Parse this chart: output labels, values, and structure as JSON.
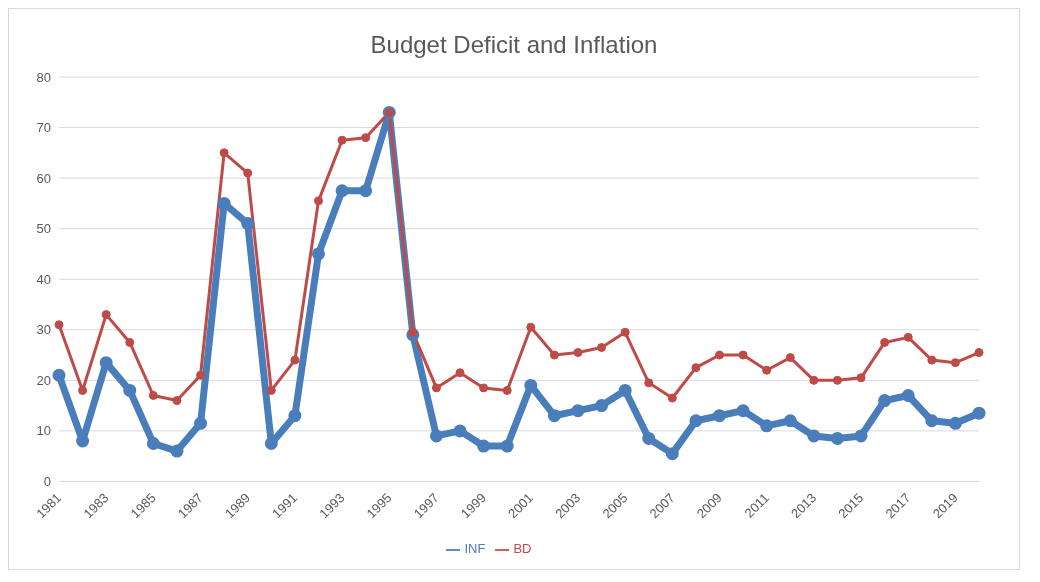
{
  "chart_data": {
    "type": "line",
    "title": "Budget Deficit and Inflation",
    "categories": [
      "1981",
      null,
      "1983",
      null,
      "1985",
      null,
      "1987",
      null,
      "1989",
      null,
      "1991",
      null,
      "1993",
      null,
      "1995",
      null,
      "1997",
      null,
      "1999",
      null,
      "2001",
      null,
      "2003",
      null,
      "2005",
      null,
      "2007",
      null,
      "2009",
      null,
      "2011",
      null,
      "2013",
      null,
      "2015",
      null,
      "2017",
      null,
      "2019",
      null
    ],
    "series": [
      {
        "name": "INF",
        "color": "#4a7ebb",
        "values": [
          21,
          8,
          23.5,
          18,
          7.5,
          6,
          11.5,
          55,
          51,
          7.5,
          13,
          45,
          57.5,
          57.5,
          73,
          29,
          9,
          10,
          7,
          7,
          19,
          13,
          14,
          15,
          18,
          8.5,
          5.5,
          12,
          13,
          14,
          11,
          12,
          9,
          8.5,
          9,
          16,
          17,
          12,
          11.5,
          13.5
        ]
      },
      {
        "name": "BD",
        "color": "#be4b48",
        "values": [
          31,
          18,
          33,
          27.5,
          17,
          16,
          21,
          65,
          61,
          18,
          24,
          55.5,
          67.5,
          68,
          73,
          29.5,
          18.5,
          21.5,
          18.5,
          18,
          30.5,
          25,
          25.5,
          26.5,
          29.5,
          19.5,
          16.5,
          22.5,
          25,
          25,
          22,
          24.5,
          20,
          20,
          20.5,
          27.5,
          28.5,
          24,
          23.5,
          25.5
        ]
      }
    ],
    "ylim": [
      0,
      80
    ],
    "yticks": [
      0,
      10,
      20,
      30,
      40,
      50,
      60,
      70,
      80
    ],
    "grid": "y",
    "legend": "bottom",
    "marker": "circle",
    "line_style": "solid"
  }
}
